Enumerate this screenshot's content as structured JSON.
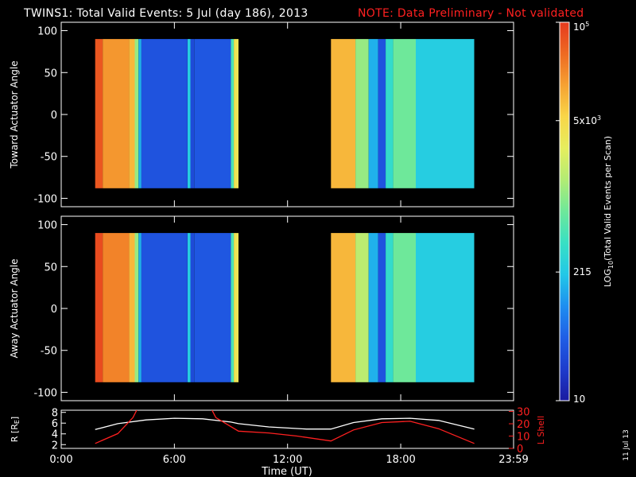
{
  "header": {
    "title": "TWINS1: Total Valid Events:  5 Jul (day 186), 2013",
    "note": "NOTE: Data Preliminary - Not validated",
    "note_color": "#ff2020"
  },
  "footer": {
    "date_stamp": "11 Jul 13"
  },
  "chart_data": [
    {
      "type": "heatmap",
      "ylabel": "Toward Actuator Angle",
      "ylim": [
        -110,
        110
      ],
      "xlim_hours": [
        0,
        23.983
      ],
      "yticks": [
        "100",
        "50",
        "0",
        "-50",
        "-100"
      ],
      "ytick_values": [
        100,
        50,
        0,
        -50,
        -100
      ],
      "data_range_y": [
        -88,
        90
      ],
      "bands": [
        {
          "start": 1.8,
          "end": 2.2,
          "level": 0.95
        },
        {
          "start": 2.2,
          "end": 3.6,
          "level": 0.85
        },
        {
          "start": 3.6,
          "end": 3.9,
          "level": 0.8
        },
        {
          "start": 3.9,
          "end": 4.1,
          "level": 0.55
        },
        {
          "start": 4.1,
          "end": 4.25,
          "level": 0.3
        },
        {
          "start": 4.25,
          "end": 6.7,
          "level": 0.14
        },
        {
          "start": 6.7,
          "end": 6.85,
          "level": 0.35
        },
        {
          "start": 6.85,
          "end": 7.05,
          "level": 0.12
        },
        {
          "start": 7.05,
          "end": 9.0,
          "level": 0.15
        },
        {
          "start": 9.0,
          "end": 9.15,
          "level": 0.45
        },
        {
          "start": 9.15,
          "end": 9.4,
          "level": 0.7
        },
        {
          "start": 14.3,
          "end": 15.6,
          "level": 0.8
        },
        {
          "start": 15.6,
          "end": 16.3,
          "level": 0.55
        },
        {
          "start": 16.3,
          "end": 16.8,
          "level": 0.3
        },
        {
          "start": 16.8,
          "end": 17.2,
          "level": 0.14
        },
        {
          "start": 17.2,
          "end": 17.6,
          "level": 0.4
        },
        {
          "start": 17.6,
          "end": 18.8,
          "level": 0.5
        },
        {
          "start": 18.8,
          "end": 21.9,
          "level": 0.35
        }
      ]
    },
    {
      "type": "heatmap",
      "ylabel": "Away Actuator Angle",
      "ylim": [
        -110,
        110
      ],
      "xlim_hours": [
        0,
        23.983
      ],
      "yticks": [
        "100",
        "50",
        "0",
        "-50",
        "-100"
      ],
      "ytick_values": [
        100,
        50,
        0,
        -50,
        -100
      ],
      "data_range_y": [
        -88,
        90
      ],
      "bands": [
        {
          "start": 1.8,
          "end": 2.2,
          "level": 0.97
        },
        {
          "start": 2.2,
          "end": 3.6,
          "level": 0.88
        },
        {
          "start": 3.6,
          "end": 3.9,
          "level": 0.8
        },
        {
          "start": 3.9,
          "end": 4.1,
          "level": 0.55
        },
        {
          "start": 4.1,
          "end": 4.25,
          "level": 0.3
        },
        {
          "start": 4.25,
          "end": 6.7,
          "level": 0.14
        },
        {
          "start": 6.7,
          "end": 6.85,
          "level": 0.35
        },
        {
          "start": 6.85,
          "end": 7.05,
          "level": 0.12
        },
        {
          "start": 7.05,
          "end": 9.0,
          "level": 0.15
        },
        {
          "start": 9.0,
          "end": 9.15,
          "level": 0.45
        },
        {
          "start": 9.15,
          "end": 9.4,
          "level": 0.7
        },
        {
          "start": 14.3,
          "end": 15.6,
          "level": 0.8
        },
        {
          "start": 15.6,
          "end": 16.3,
          "level": 0.6
        },
        {
          "start": 16.3,
          "end": 16.8,
          "level": 0.3
        },
        {
          "start": 16.8,
          "end": 17.2,
          "level": 0.14
        },
        {
          "start": 17.2,
          "end": 17.6,
          "level": 0.4
        },
        {
          "start": 17.6,
          "end": 18.8,
          "level": 0.5
        },
        {
          "start": 18.8,
          "end": 21.9,
          "level": 0.35
        }
      ]
    },
    {
      "type": "line",
      "ylabel_left": "R [R",
      "ylabel_left_sub": "E",
      "ylabel_left_close": "]",
      "ylabel_right": "L Shell",
      "ylabel_right_color": "#ff2020",
      "xlabel": "Time (UT)",
      "xticks": [
        "0:00",
        "6:00",
        "12:00",
        "18:00",
        "23:59"
      ],
      "xtick_values": [
        0,
        6,
        12,
        18,
        23.983
      ],
      "xlim_hours": [
        0,
        23.983
      ],
      "left_yticks": [
        "8",
        "6",
        "4",
        "2"
      ],
      "left_ytick_values": [
        8,
        6,
        4,
        2
      ],
      "left_ylim": [
        1.3,
        8.4
      ],
      "right_yticks": [
        "30",
        "20",
        "10",
        "0"
      ],
      "right_ytick_values": [
        30,
        20,
        10,
        0
      ],
      "right_ylim": [
        0,
        31
      ],
      "series": [
        {
          "color": "#ffffff",
          "x": [
            1.8,
            3,
            4.5,
            6,
            7.5,
            9,
            9.4,
            11,
            13,
            14.3,
            15.5,
            17,
            18.5,
            20,
            21.9
          ],
          "y": [
            4.8,
            5.9,
            6.6,
            6.9,
            6.8,
            6.2,
            5.9,
            5.3,
            4.9,
            4.9,
            6.1,
            6.8,
            6.9,
            6.5,
            4.9
          ]
        },
        {
          "color": "#ff2020",
          "x": [
            1.8,
            3,
            3.8,
            4.1,
            7.9,
            8.2,
            9.4,
            11,
            12.5,
            14.3,
            15.5,
            17,
            18.5,
            20,
            21.9
          ],
          "y": [
            4,
            12,
            25,
            34,
            34,
            25,
            14,
            12.5,
            10,
            6,
            15,
            21,
            22,
            16,
            4
          ]
        }
      ]
    }
  ],
  "colorbar": {
    "label_main": "LOG",
    "label_sub": "10",
    "label_rest": "(Total Valid Events per Scan)",
    "ticks": [
      {
        "level": 1.0,
        "base": "10",
        "exp": "5"
      },
      {
        "level": 0.74,
        "base": "5x10",
        "exp": "3"
      },
      {
        "level": 0.34,
        "base": "215",
        "exp": ""
      },
      {
        "level": 0.0,
        "base": "10",
        "exp": ""
      }
    ]
  },
  "colors": {
    "background": "#000000",
    "axis": "#ffffff",
    "colormap_stops": [
      "#1a1aa0",
      "#1e3ccd",
      "#1f5ee6",
      "#1e8ef0",
      "#22c8e8",
      "#38e0c4",
      "#6ee89a",
      "#b2ec74",
      "#e6ee5e",
      "#f8d648",
      "#f6a232",
      "#ee6a22",
      "#e63a1e"
    ]
  }
}
